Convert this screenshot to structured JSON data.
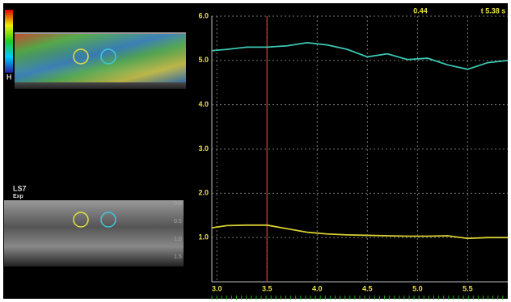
{
  "chart_data": {
    "type": "line",
    "annotations": [
      "0.44",
      "t 5.38 s"
    ],
    "x": [
      2.95,
      3.1,
      3.3,
      3.5,
      3.7,
      3.9,
      4.1,
      4.3,
      4.5,
      4.7,
      4.9,
      5.1,
      5.3,
      5.5,
      5.7,
      5.9
    ],
    "series": [
      {
        "color": "#3cc8b4",
        "values": [
          5.22,
          5.25,
          5.3,
          5.3,
          5.33,
          5.4,
          5.35,
          5.25,
          5.08,
          5.15,
          5.02,
          5.05,
          4.9,
          4.8,
          4.95,
          5.0
        ]
      },
      {
        "color": "#d8d030",
        "values": [
          1.22,
          1.27,
          1.28,
          1.28,
          1.2,
          1.12,
          1.08,
          1.06,
          1.05,
          1.04,
          1.03,
          1.03,
          1.04,
          0.98,
          1.0,
          1.0
        ]
      }
    ],
    "cursor": 3.5,
    "xlim": [
      2.95,
      5.9
    ],
    "xticks": [
      {
        "value": 3,
        "label": "3.0"
      },
      3.5,
      {
        "value": 4,
        "label": "4.0"
      },
      4.5,
      {
        "value": 5,
        "label": "5.0"
      },
      5.5
    ],
    "ylim": [
      0,
      6
    ],
    "yticks": [
      {
        "value": 1,
        "label": "1.0"
      },
      {
        "value": 2,
        "label": "2.0"
      },
      {
        "value": 3,
        "label": "3.0"
      },
      {
        "value": 4,
        "label": "4.0"
      },
      {
        "value": 5,
        "label": "5.0"
      },
      {
        "value": 6,
        "label": "6.0"
      }
    ],
    "grid": true
  },
  "left_panel": {
    "scale_label": "H",
    "probe": "LS7",
    "mode": "Exp",
    "depth_ticks": [
      "0.0",
      "0.5",
      "1.0",
      "1.5"
    ]
  }
}
